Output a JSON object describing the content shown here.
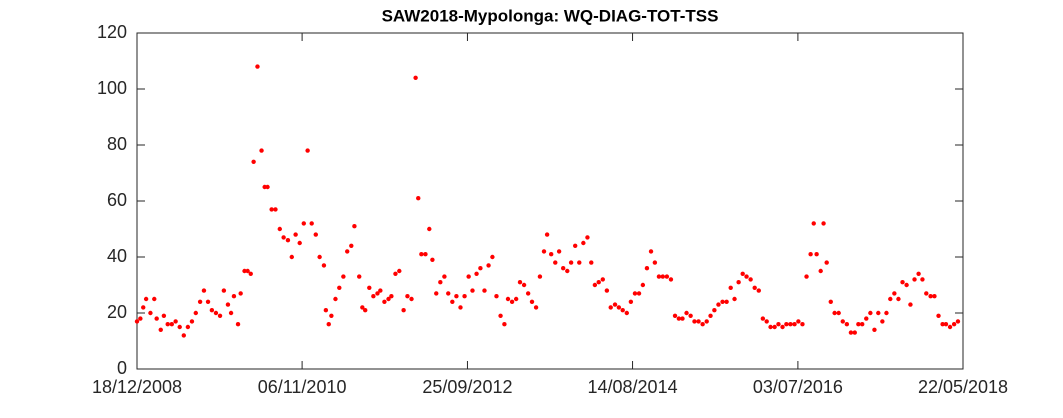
{
  "chart_data": {
    "type": "scatter",
    "title": "SAW2018-Mypolonga: WQ-DIAG-TOT-TSS",
    "color": "#ff0000",
    "x": [
      "18/12/2008",
      "01/01/2009",
      "13/01/2009",
      "25/01/2009",
      "12/02/2009",
      "28/02/2009",
      "10/03/2009",
      "27/03/2009",
      "09/04/2009",
      "25/04/2009",
      "12/05/2009",
      "28/05/2009",
      "14/06/2009",
      "01/07/2009",
      "18/07/2009",
      "04/08/2009",
      "20/08/2009",
      "07/09/2009",
      "23/09/2009",
      "10/10/2009",
      "26/10/2009",
      "12/11/2009",
      "29/11/2009",
      "15/12/2009",
      "01/01/2010",
      "14/01/2010",
      "26/01/2010",
      "12/02/2010",
      "23/02/2010",
      "11/03/2010",
      "24/03/2010",
      "06/04/2010",
      "18/04/2010",
      "04/05/2010",
      "21/05/2010",
      "03/06/2010",
      "15/06/2010",
      "02/07/2010",
      "18/07/2010",
      "05/08/2010",
      "21/08/2010",
      "08/09/2010",
      "24/09/2010",
      "10/10/2010",
      "27/10/2010",
      "13/11/2010",
      "29/11/2010",
      "16/12/2010",
      "02/01/2011",
      "18/01/2011",
      "05/02/2011",
      "13/02/2011",
      "25/02/2011",
      "08/03/2011",
      "25/03/2011",
      "10/04/2011",
      "27/04/2011",
      "13/05/2011",
      "30/05/2011",
      "12/06/2011",
      "02/07/2011",
      "15/07/2011",
      "27/07/2011",
      "13/08/2011",
      "30/08/2011",
      "16/09/2011",
      "28/09/2011",
      "15/10/2011",
      "01/11/2011",
      "13/11/2011",
      "30/11/2011",
      "16/12/2011",
      "03/01/2012",
      "19/01/2012",
      "05/02/2012",
      "22/02/2012",
      "04/03/2012",
      "17/03/2012",
      "03/04/2012",
      "19/04/2012",
      "02/05/2012",
      "18/05/2012",
      "04/06/2012",
      "21/06/2012",
      "07/07/2012",
      "24/07/2012",
      "10/08/2012",
      "27/08/2012",
      "13/09/2012",
      "30/09/2012",
      "16/10/2012",
      "02/11/2012",
      "18/11/2012",
      "05/12/2012",
      "22/12/2012",
      "07/01/2013",
      "24/01/2013",
      "10/02/2013",
      "26/02/2013",
      "13/03/2013",
      "30/03/2013",
      "16/04/2013",
      "02/05/2013",
      "19/05/2013",
      "05/06/2013",
      "21/06/2013",
      "08/07/2013",
      "24/07/2013",
      "10/08/2013",
      "23/08/2013",
      "09/09/2013",
      "26/09/2013",
      "12/10/2013",
      "29/10/2013",
      "15/11/2013",
      "01/12/2013",
      "18/12/2013",
      "04/01/2014",
      "21/01/2014",
      "07/02/2014",
      "23/02/2014",
      "10/03/2014",
      "26/03/2014",
      "12/04/2014",
      "29/04/2014",
      "15/05/2014",
      "02/06/2014",
      "18/06/2014",
      "04/07/2014",
      "21/07/2014",
      "07/08/2014",
      "24/08/2014",
      "10/09/2014",
      "26/09/2014",
      "13/10/2014",
      "30/10/2014",
      "15/11/2014",
      "02/12/2014",
      "18/12/2014",
      "04/01/2015",
      "21/01/2015",
      "07/02/2015",
      "23/02/2015",
      "10/03/2015",
      "27/03/2015",
      "13/04/2015",
      "29/04/2015",
      "16/05/2015",
      "02/06/2015",
      "19/06/2015",
      "05/07/2015",
      "21/07/2015",
      "07/08/2015",
      "24/08/2015",
      "10/09/2015",
      "27/09/2015",
      "13/10/2015",
      "30/10/2015",
      "16/11/2015",
      "02/12/2015",
      "19/12/2015",
      "05/01/2016",
      "22/01/2016",
      "08/02/2016",
      "24/02/2016",
      "11/03/2016",
      "28/03/2016",
      "13/04/2016",
      "30/04/2016",
      "16/05/2016",
      "02/06/2016",
      "19/06/2016",
      "05/07/2016",
      "22/07/2016",
      "08/08/2016",
      "25/08/2016",
      "07/09/2016",
      "19/09/2016",
      "06/10/2016",
      "18/10/2016",
      "31/10/2016",
      "17/11/2016",
      "03/12/2016",
      "20/12/2016",
      "06/01/2017",
      "23/01/2017",
      "09/02/2017",
      "25/02/2017",
      "12/03/2017",
      "28/03/2017",
      "14/04/2017",
      "01/05/2017",
      "18/05/2017",
      "03/06/2017",
      "20/06/2017",
      "07/07/2017",
      "23/07/2017",
      "09/08/2017",
      "26/08/2017",
      "12/09/2017",
      "29/09/2017",
      "15/10/2017",
      "01/11/2017",
      "18/11/2017",
      "04/12/2017",
      "20/12/2017",
      "07/01/2018",
      "23/01/2018",
      "09/02/2018",
      "26/02/2018",
      "12/03/2018",
      "29/03/2018",
      "15/04/2018",
      "01/05/2018"
    ],
    "values": [
      17,
      18,
      22,
      25,
      20,
      25,
      18,
      14,
      19,
      16,
      16,
      17,
      15,
      12,
      15,
      17,
      20,
      24,
      28,
      24,
      21,
      20,
      19,
      28,
      23,
      20,
      26,
      16,
      27,
      35,
      35,
      34,
      74,
      108,
      78,
      65,
      65,
      57,
      57,
      50,
      47,
      46,
      40,
      48,
      45,
      52,
      78,
      52,
      48,
      40,
      37,
      21,
      16,
      19,
      25,
      29,
      33,
      42,
      44,
      51,
      33,
      22,
      21,
      29,
      26,
      27,
      28,
      24,
      25,
      26,
      34,
      35,
      21,
      26,
      25,
      104,
      61,
      41,
      41,
      50,
      39,
      27,
      31,
      33,
      27,
      24,
      26,
      22,
      26,
      33,
      28,
      34,
      36,
      28,
      37,
      40,
      26,
      19,
      16,
      25,
      24,
      25,
      31,
      30,
      27,
      24,
      22,
      33,
      42,
      48,
      41,
      38,
      42,
      36,
      35,
      38,
      44,
      38,
      45,
      47,
      38,
      30,
      31,
      32,
      28,
      22,
      23,
      22,
      21,
      20,
      24,
      27,
      27,
      30,
      36,
      42,
      38,
      33,
      33,
      33,
      32,
      19,
      18,
      18,
      20,
      19,
      17,
      17,
      16,
      17,
      19,
      21,
      23,
      24,
      24,
      29,
      25,
      31,
      34,
      33,
      32,
      29,
      28,
      18,
      17,
      15,
      15,
      16,
      15,
      16,
      16,
      16,
      17,
      16,
      33,
      41,
      52,
      41,
      35,
      52,
      38,
      24,
      20,
      20,
      17,
      16,
      13,
      13,
      16,
      16,
      18,
      20,
      14,
      20,
      17,
      20,
      25,
      27,
      25,
      31,
      30,
      23,
      32,
      34,
      32,
      27,
      26,
      26,
      19,
      16,
      16,
      15,
      16,
      17
    ],
    "xlim": [
      "18/12/2008",
      "22/05/2018"
    ],
    "xticks": [
      "18/12/2008",
      "06/11/2010",
      "25/09/2012",
      "14/08/2014",
      "03/07/2016",
      "22/05/2018"
    ],
    "ylim": [
      0,
      120
    ],
    "yticks": [
      0,
      20,
      40,
      60,
      80,
      100,
      120
    ],
    "grid": false
  }
}
